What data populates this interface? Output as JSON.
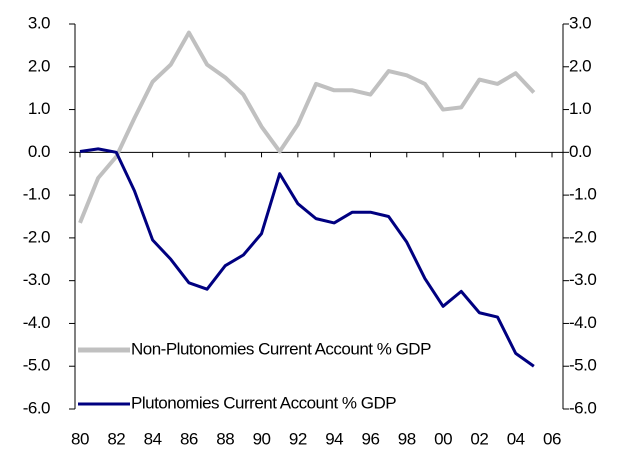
{
  "chart_data": {
    "type": "line",
    "x": [
      1980,
      1981,
      1982,
      1983,
      1984,
      1985,
      1986,
      1987,
      1988,
      1989,
      1990,
      1991,
      1992,
      1993,
      1994,
      1995,
      1996,
      1997,
      1998,
      1999,
      2000,
      2001,
      2002,
      2003,
      2004,
      2005
    ],
    "series": [
      {
        "name": "Non-Plutonomies Current Account % GDP",
        "color": "#c0c0c0",
        "values": [
          -1.65,
          -0.6,
          -0.1,
          0.8,
          1.65,
          2.05,
          2.8,
          2.05,
          1.75,
          1.35,
          0.6,
          0.02,
          0.65,
          1.6,
          1.45,
          1.45,
          1.35,
          1.9,
          1.8,
          1.6,
          1.0,
          1.05,
          1.7,
          1.6,
          1.85,
          1.4
        ]
      },
      {
        "name": "Plutonomies Current Account % GDP",
        "color": "#000080",
        "values": [
          0.02,
          0.08,
          0.0,
          -0.9,
          -2.05,
          -2.5,
          -3.05,
          -3.2,
          -2.65,
          -2.4,
          -1.9,
          -0.5,
          -1.2,
          -1.55,
          -1.65,
          -1.4,
          -1.4,
          -1.5,
          -2.1,
          -2.95,
          -3.6,
          -3.25,
          -3.75,
          -3.85,
          -4.7,
          -5.0
        ]
      }
    ],
    "xlim": [
      1980,
      2006
    ],
    "xticks": [
      {
        "value": 1980,
        "label": "80"
      },
      {
        "value": 1982,
        "label": "82"
      },
      {
        "value": 1984,
        "label": "84"
      },
      {
        "value": 1986,
        "label": "86"
      },
      {
        "value": 1988,
        "label": "88"
      },
      {
        "value": 1990,
        "label": "90"
      },
      {
        "value": 1992,
        "label": "92"
      },
      {
        "value": 1994,
        "label": "94"
      },
      {
        "value": 1996,
        "label": "96"
      },
      {
        "value": 1998,
        "label": "98"
      },
      {
        "value": 2000,
        "label": "00"
      },
      {
        "value": 2002,
        "label": "02"
      },
      {
        "value": 2004,
        "label": "04"
      },
      {
        "value": 2006,
        "label": "06"
      }
    ],
    "ylim": [
      -6,
      3
    ],
    "yticks": [
      {
        "value": 3,
        "label": "3.0"
      },
      {
        "value": 2,
        "label": "2.0"
      },
      {
        "value": 1,
        "label": "1.0"
      },
      {
        "value": 0,
        "label": "0.0"
      },
      {
        "value": -1,
        "label": "-1.0"
      },
      {
        "value": -2,
        "label": "-2.0"
      },
      {
        "value": -3,
        "label": "-3.0"
      },
      {
        "value": -4,
        "label": "-4.0"
      },
      {
        "value": -5,
        "label": "-5.0"
      },
      {
        "value": -6,
        "label": "-6.0"
      }
    ],
    "y2lim": [
      -6,
      3
    ],
    "y2ticks": [
      {
        "value": 3,
        "label": "3.0"
      },
      {
        "value": 2,
        "label": "2.0"
      },
      {
        "value": 1,
        "label": "1.0"
      },
      {
        "value": 0,
        "label": "0.0"
      },
      {
        "value": -1,
        "label": "-1.0"
      },
      {
        "value": -2,
        "label": "-2.0"
      },
      {
        "value": -3,
        "label": "-3.0"
      },
      {
        "value": -4,
        "label": "-4.0"
      },
      {
        "value": -5,
        "label": "-5.0"
      },
      {
        "value": -6,
        "label": "-6.0"
      }
    ],
    "legend": "lower left"
  }
}
